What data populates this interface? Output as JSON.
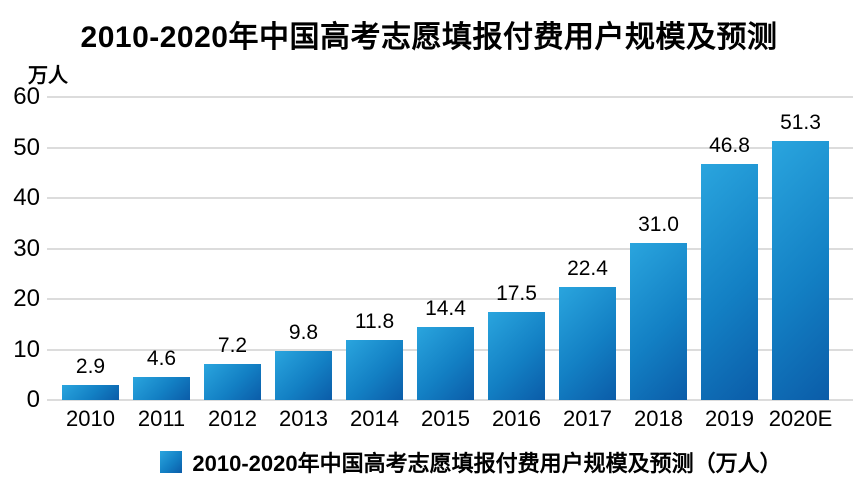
{
  "header": {
    "title": "2010-2020年中国高考志愿填报付费用户规模及预测"
  },
  "chart_data": {
    "type": "bar",
    "title": "2010-2020年中国高考志愿填报付费用户规模及预测",
    "categories": [
      "2010",
      "2011",
      "2012",
      "2013",
      "2014",
      "2015",
      "2016",
      "2017",
      "2018",
      "2019",
      "2020E"
    ],
    "values": [
      2.9,
      4.6,
      7.2,
      9.8,
      11.8,
      14.4,
      17.5,
      22.4,
      31.0,
      46.8,
      51.3
    ],
    "value_labels": [
      "2.9",
      "4.6",
      "7.2",
      "9.8",
      "11.8",
      "14.4",
      "17.5",
      "22.4",
      "31.0",
      "46.8",
      "51.3"
    ],
    "xlabel": "",
    "ylabel": "万人",
    "ylim": [
      0,
      60
    ],
    "yticks": [
      60,
      50,
      40,
      30,
      20,
      10,
      0
    ],
    "grid": true,
    "legend": {
      "position": "bottom",
      "label": "2010-2020年中国高考志愿填报付费用户规模及预测（万人）"
    },
    "colors": {
      "bar_gradient_light": "#2aa5de",
      "bar_gradient_mid": "#1380c4",
      "bar_gradient_dark": "#0b5ca8",
      "gridline": "#dcdcdc",
      "text": "#000000",
      "background": "#ffffff"
    }
  }
}
